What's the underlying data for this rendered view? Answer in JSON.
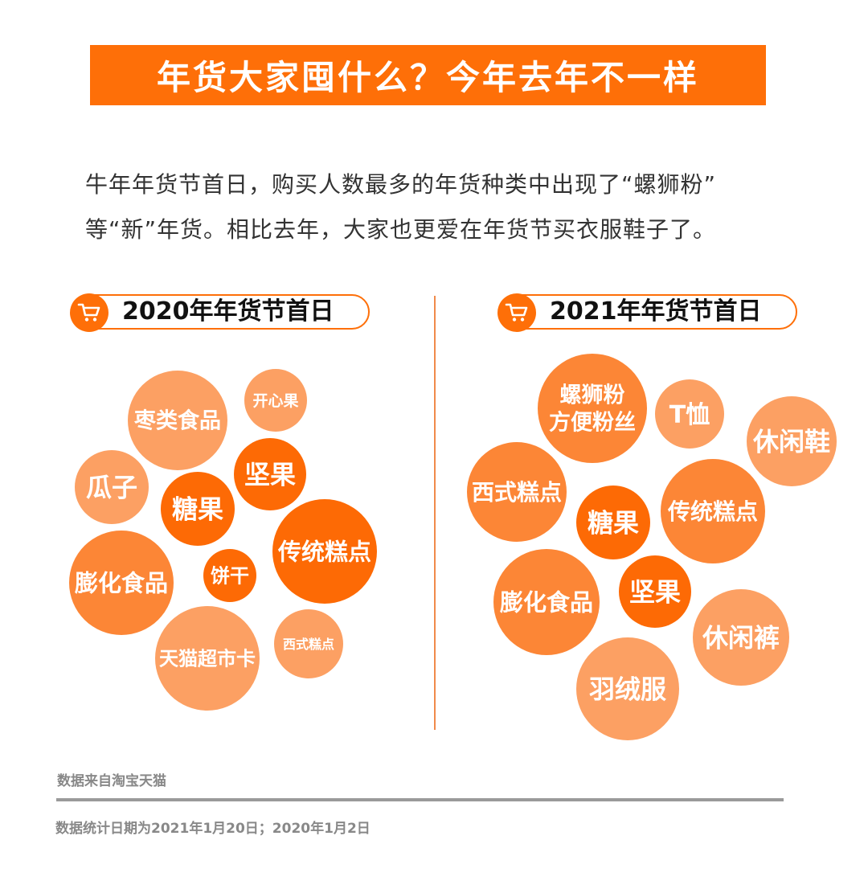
{
  "title": "年货大家囤什么？今年去年不一样",
  "intro": {
    "line1": "牛年年货节首日，购买人数最多的年货种类中出现了“螺狮粉”",
    "line2": "等“新”年货。相比去年，大家也更爱在年货节买衣服鞋子了。"
  },
  "colors": {
    "accent": "#fe6f08",
    "dark": "#fd6a05",
    "medium": "#fc8636",
    "light": "#fca063"
  },
  "icons": {
    "pill_icon": "shopping-cart-icon"
  },
  "chart_data": [
    {
      "type": "bubble",
      "title": "2020年年货节首日",
      "items": [
        {
          "label": "枣类食品",
          "shade": "light"
        },
        {
          "label": "开心果",
          "shade": "light"
        },
        {
          "label": "坚果",
          "shade": "dark"
        },
        {
          "label": "瓜子",
          "shade": "light"
        },
        {
          "label": "糖果",
          "shade": "dark"
        },
        {
          "label": "传统糕点",
          "shade": "dark"
        },
        {
          "label": "膨化食品",
          "shade": "medium"
        },
        {
          "label": "饼干",
          "shade": "dark"
        },
        {
          "label": "天猫超市卡",
          "shade": "light"
        },
        {
          "label": "西式糕点",
          "shade": "light"
        }
      ]
    },
    {
      "type": "bubble",
      "title": "2021年年货节首日",
      "items": [
        {
          "label": "螺狮粉\n方便粉丝",
          "shade": "medium"
        },
        {
          "label": "T恤",
          "shade": "light"
        },
        {
          "label": "休闲鞋",
          "shade": "light"
        },
        {
          "label": "西式糕点",
          "shade": "medium"
        },
        {
          "label": "糖果",
          "shade": "dark"
        },
        {
          "label": "传统糕点",
          "shade": "medium"
        },
        {
          "label": "膨化食品",
          "shade": "medium"
        },
        {
          "label": "坚果",
          "shade": "dark"
        },
        {
          "label": "休闲裤",
          "shade": "light"
        },
        {
          "label": "羽绒服",
          "shade": "light"
        }
      ]
    }
  ],
  "footer": {
    "source": "数据来自淘宝天猫",
    "dates": "数据统计日期为2021年1月20日；2020年1月2日"
  }
}
